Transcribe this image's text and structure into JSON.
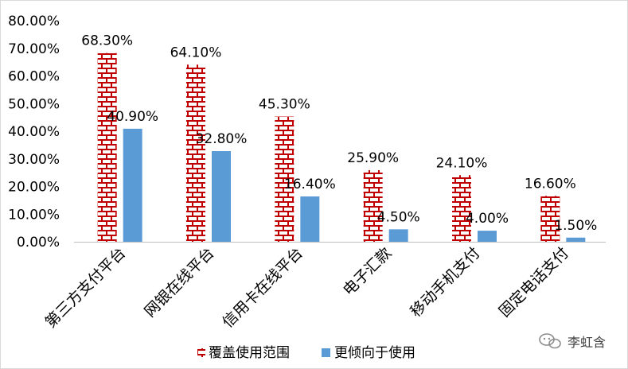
{
  "chart_data": {
    "type": "bar",
    "categories": [
      "第三方支付平台",
      "网银在线平台",
      "信用卡在线平台",
      "电子汇款",
      "移动手机支付",
      "固定电话支付"
    ],
    "series": [
      {
        "name": "覆盖使用范围",
        "values": [
          68.3,
          64.1,
          45.3,
          25.9,
          24.1,
          16.6
        ],
        "labels": [
          "68.30%",
          "64.10%",
          "45.30%",
          "25.90%",
          "24.10%",
          "16.60%"
        ],
        "color": "#c00000",
        "pattern": "brick"
      },
      {
        "name": "更倾向于使用",
        "values": [
          40.9,
          32.8,
          16.4,
          4.5,
          4.0,
          1.5
        ],
        "labels": [
          "40.90%",
          "32.80%",
          "16.40%",
          "4.50%",
          "4.00%",
          "1.50%"
        ],
        "color": "#5b9bd5",
        "pattern": "solid"
      }
    ],
    "yticks": [
      "0.00%",
      "10.00%",
      "20.00%",
      "30.00%",
      "40.00%",
      "50.00%",
      "60.00%",
      "70.00%",
      "80.00%"
    ],
    "ylim": [
      0,
      80
    ],
    "legend_position": "bottom",
    "grid": false
  },
  "watermark": {
    "text": "李虹含",
    "icon": "wechat-icon"
  }
}
